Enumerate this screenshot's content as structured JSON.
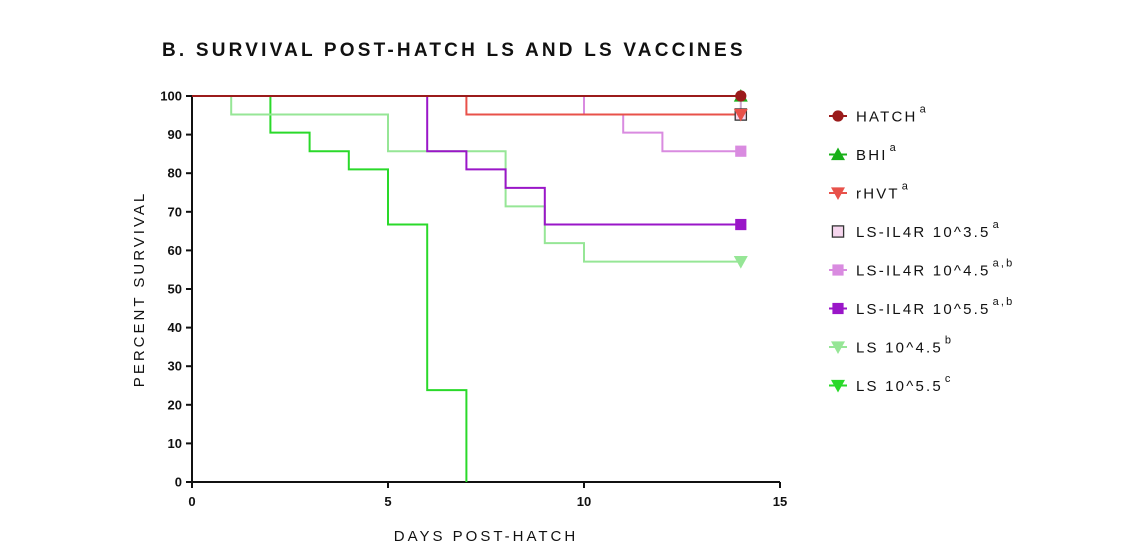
{
  "chart_data": {
    "type": "line",
    "step": true,
    "title": "B. SURVIVAL POST-HATCH LS AND LS VACCINES",
    "xlabel": "DAYS POST-HATCH",
    "ylabel": "PERCENT SURVIVAL",
    "xlim": [
      0,
      15
    ],
    "ylim": [
      0,
      100
    ],
    "xticks": [
      0,
      5,
      10,
      15
    ],
    "yticks": [
      0,
      10,
      20,
      30,
      40,
      50,
      60,
      70,
      80,
      90,
      100
    ],
    "legend_position": "right",
    "series": [
      {
        "name": "HATCH",
        "sup": "a",
        "color": "#9b1b1b",
        "marker": "circle",
        "x": [
          0,
          14
        ],
        "y": [
          100,
          100
        ]
      },
      {
        "name": "BHI",
        "sup": "a",
        "color": "#19b019",
        "marker": "triangle-up",
        "x": [
          0,
          14
        ],
        "y": [
          100,
          100
        ]
      },
      {
        "name": "rHVT",
        "sup": "a",
        "color": "#e8514a",
        "marker": "triangle-down",
        "x": [
          0,
          7,
          14
        ],
        "y": [
          100,
          95.2,
          95.2
        ]
      },
      {
        "name": "LS-IL4R 10^3.5",
        "sup": "a",
        "color": "#c9a6c9",
        "marker": "square-open",
        "fill": "#f6d6ee",
        "x": [
          0,
          4,
          14
        ],
        "y": [
          100,
          100,
          95.2
        ]
      },
      {
        "name": "LS-IL4R 10^4.5",
        "sup": "a,b",
        "color": "#d98be0",
        "marker": "square",
        "x": [
          0,
          10,
          11,
          12,
          14
        ],
        "y": [
          100,
          95.2,
          90.5,
          85.7,
          85.7
        ]
      },
      {
        "name": "LS-IL4R 10^5.5",
        "sup": "a,b",
        "color": "#9a16c8",
        "marker": "square",
        "x": [
          0,
          6,
          7,
          8,
          9,
          14
        ],
        "y": [
          100,
          85.7,
          81,
          76.2,
          66.7,
          66.7
        ]
      },
      {
        "name": "LS 10^4.5",
        "sup": "b",
        "color": "#96e696",
        "marker": "triangle-down",
        "x": [
          0,
          1,
          5,
          8,
          9,
          10,
          14
        ],
        "y": [
          100,
          95.2,
          85.7,
          71.4,
          61.9,
          57.1,
          57.1
        ]
      },
      {
        "name": "LS 10^5.5",
        "sup": "c",
        "color": "#2ad92a",
        "marker": "triangle-down",
        "x": [
          0,
          2,
          3,
          4,
          5,
          6,
          7
        ],
        "y": [
          100,
          90.5,
          85.7,
          81,
          66.7,
          23.8,
          0
        ]
      }
    ]
  }
}
